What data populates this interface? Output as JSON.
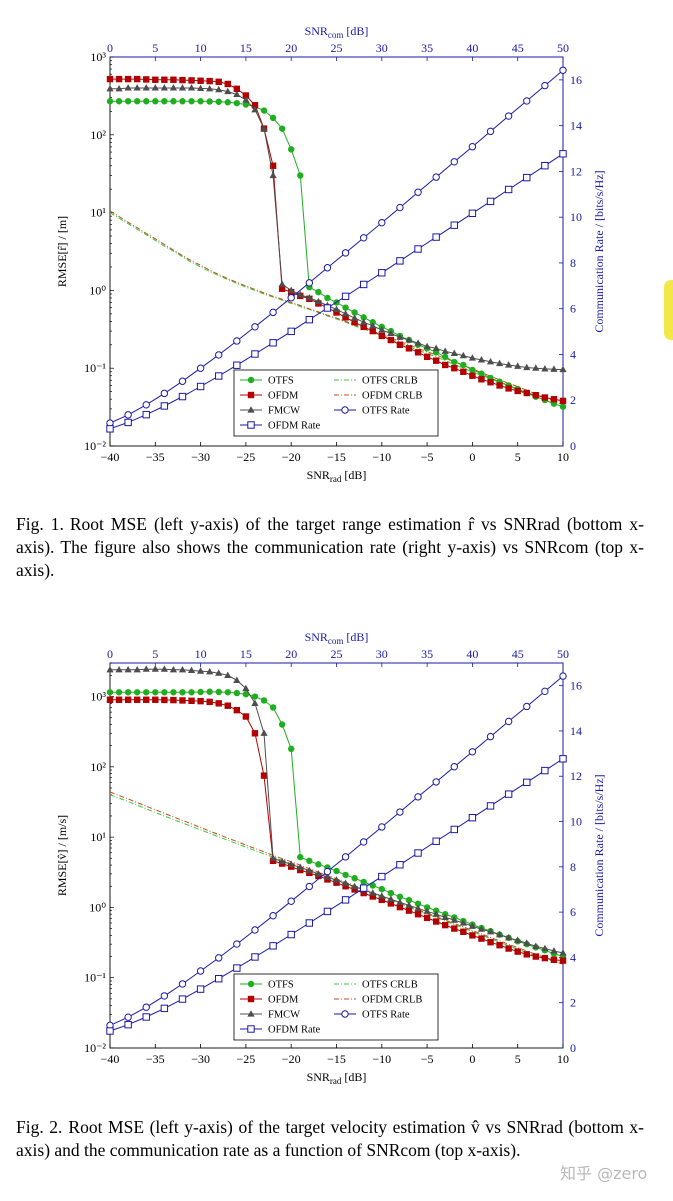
{
  "figure1": {
    "chart_data": {
      "type": "line",
      "title": "",
      "xlabel_bottom": "SNR_rad [dB]",
      "xlabel_top": "SNR_com [dB]",
      "ylabel_left": "RMSE[r̂] / [m]",
      "ylabel_right": "Communication Rate / [bits/s/Hz]",
      "x_bottom_range": [
        -40,
        10
      ],
      "x_top_range": [
        0,
        50
      ],
      "y_left_log_range": [
        0.01,
        1000
      ],
      "y_right_range": [
        0,
        17
      ],
      "x_bottom_ticks": [
        "−40",
        "−35",
        "−30",
        "−25",
        "−20",
        "−15",
        "−10",
        "−5",
        "0",
        "5",
        "10"
      ],
      "x_top_ticks": [
        "0",
        "5",
        "10",
        "15",
        "20",
        "25",
        "30",
        "35",
        "40",
        "45",
        "50"
      ],
      "y_left_ticks": [
        "10⁻²",
        "10⁻¹",
        "10⁰",
        "10¹",
        "10²",
        "10³"
      ],
      "y_right_ticks": [
        "0",
        "2",
        "4",
        "6",
        "8",
        "10",
        "12",
        "14",
        "16"
      ],
      "legend": [
        "OTFS",
        "OTFS CRLB",
        "OFDM",
        "OFDM CRLB",
        "FMCW",
        "OTFS Rate",
        "OFDM Rate"
      ],
      "rmse_x": [
        -40,
        -39,
        -38,
        -37,
        -36,
        -35,
        -34,
        -33,
        -32,
        -31,
        -30,
        -29,
        -28,
        -27,
        -26,
        -25,
        -24,
        -23,
        -22,
        -21,
        -20,
        -19,
        -18,
        -17,
        -16,
        -15,
        -14,
        -13,
        -12,
        -11,
        -10,
        -9,
        -8,
        -7,
        -6,
        -5,
        -4,
        -3,
        -2,
        -1,
        0,
        1,
        2,
        3,
        4,
        5,
        6,
        7,
        8,
        9,
        10
      ],
      "series": [
        {
          "name": "OTFS",
          "values": [
            270,
            270,
            270,
            270,
            270,
            270,
            270,
            270,
            270,
            270,
            270,
            268,
            266,
            262,
            255,
            245,
            230,
            205,
            165,
            120,
            65,
            30,
            1.1,
            0.95,
            0.8,
            0.7,
            0.6,
            0.52,
            0.45,
            0.39,
            0.34,
            0.3,
            0.26,
            0.23,
            0.2,
            0.18,
            0.16,
            0.14,
            0.12,
            0.11,
            0.095,
            0.085,
            0.075,
            0.067,
            0.06,
            0.054,
            0.048,
            0.043,
            0.039,
            0.035,
            0.032
          ]
        },
        {
          "name": "OFDM",
          "values": [
            520,
            520,
            520,
            520,
            515,
            510,
            510,
            510,
            505,
            500,
            495,
            490,
            480,
            450,
            390,
            320,
            240,
            120,
            40,
            1.05,
            0.95,
            0.85,
            0.78,
            0.68,
            0.6,
            0.52,
            0.45,
            0.39,
            0.34,
            0.3,
            0.26,
            0.23,
            0.2,
            0.18,
            0.16,
            0.14,
            0.125,
            0.11,
            0.1,
            0.09,
            0.08,
            0.072,
            0.066,
            0.06,
            0.055,
            0.051,
            0.048,
            0.045,
            0.042,
            0.04,
            0.038
          ]
        },
        {
          "name": "FMCW",
          "values": [
            390,
            390,
            400,
            400,
            400,
            400,
            400,
            400,
            400,
            400,
            395,
            390,
            380,
            360,
            330,
            280,
            210,
            120,
            30,
            1.2,
            1.0,
            0.88,
            0.8,
            0.72,
            0.64,
            0.57,
            0.5,
            0.44,
            0.39,
            0.35,
            0.31,
            0.28,
            0.25,
            0.23,
            0.21,
            0.19,
            0.18,
            0.165,
            0.155,
            0.145,
            0.135,
            0.128,
            0.121,
            0.115,
            0.11,
            0.106,
            0.102,
            0.1,
            0.098,
            0.097,
            0.096
          ]
        },
        {
          "name": "OTFS CRLB",
          "values": [
            10,
            8.5,
            7.2,
            6.1,
            5.2,
            4.4,
            3.7,
            3.2,
            2.7,
            2.3,
            2.0,
            1.75,
            1.55,
            1.38,
            1.23,
            1.1,
            1.0,
            0.9,
            0.82,
            0.75,
            0.68,
            0.62,
            0.57,
            0.52,
            0.47,
            0.43,
            0.39,
            0.35,
            0.32,
            0.29,
            0.26,
            0.235,
            0.21,
            0.19,
            0.17,
            0.155,
            0.14,
            0.125,
            0.112,
            0.1,
            0.09,
            0.081,
            0.073,
            0.066,
            0.059,
            0.053,
            0.048,
            0.043,
            0.039,
            0.035,
            0.032
          ]
        },
        {
          "name": "OFDM CRLB",
          "values": [
            10.5,
            8.9,
            7.5,
            6.4,
            5.4,
            4.6,
            3.9,
            3.3,
            2.8,
            2.4,
            2.1,
            1.82,
            1.6,
            1.42,
            1.27,
            1.14,
            1.03,
            0.93,
            0.84,
            0.77,
            0.7,
            0.64,
            0.58,
            0.53,
            0.48,
            0.44,
            0.4,
            0.36,
            0.33,
            0.3,
            0.27,
            0.245,
            0.22,
            0.2,
            0.18,
            0.163,
            0.148,
            0.134,
            0.121,
            0.109,
            0.098,
            0.088,
            0.079,
            0.071,
            0.064,
            0.058,
            0.052,
            0.047,
            0.042,
            0.038,
            0.034
          ]
        }
      ],
      "rate_x": [
        0,
        2,
        4,
        6,
        8,
        10,
        12,
        14,
        16,
        18,
        20,
        22,
        24,
        26,
        28,
        30,
        32,
        34,
        36,
        38,
        40,
        42,
        44,
        46,
        48,
        50
      ],
      "rate_series": [
        {
          "name": "OTFS Rate",
          "values": [
            1.0,
            1.36,
            1.8,
            2.3,
            2.83,
            3.4,
            3.98,
            4.59,
            5.21,
            5.84,
            6.48,
            7.13,
            7.79,
            8.44,
            9.1,
            9.76,
            10.42,
            11.09,
            11.75,
            12.42,
            13.08,
            13.75,
            14.42,
            15.08,
            15.75,
            16.42
          ]
        },
        {
          "name": "OFDM Rate",
          "values": [
            0.75,
            1.03,
            1.37,
            1.75,
            2.16,
            2.6,
            3.06,
            3.53,
            4.02,
            4.51,
            5.01,
            5.52,
            6.03,
            6.54,
            7.06,
            7.57,
            8.09,
            8.61,
            9.13,
            9.65,
            10.17,
            10.69,
            11.21,
            11.73,
            12.25,
            12.77
          ]
        }
      ]
    },
    "caption_label": "Fig. 1.",
    "caption_text": "Root MSE (left y-axis) of the target range estimation r̂ vs SNRrad (bottom x-axis). The figure also shows the communication rate (right y-axis) vs SNRcom (top x-axis)."
  },
  "figure2": {
    "chart_data": {
      "type": "line",
      "title": "",
      "xlabel_bottom": "SNR_rad [dB]",
      "xlabel_top": "SNR_com [dB]",
      "ylabel_left": "RMSE[v̂] / [m/s]",
      "ylabel_right": "Communication Rate / [bits/s/Hz]",
      "x_bottom_range": [
        -40,
        10
      ],
      "x_top_range": [
        0,
        50
      ],
      "y_left_log_range": [
        0.01,
        3000
      ],
      "y_right_range": [
        0,
        17
      ],
      "x_bottom_ticks": [
        "−40",
        "−35",
        "−30",
        "−25",
        "−20",
        "−15",
        "−10",
        "−5",
        "0",
        "5",
        "10"
      ],
      "x_top_ticks": [
        "0",
        "5",
        "10",
        "15",
        "20",
        "25",
        "30",
        "35",
        "40",
        "45",
        "50"
      ],
      "y_left_ticks": [
        "10⁻²",
        "10⁻¹",
        "10⁰",
        "10¹",
        "10²",
        "10³"
      ],
      "y_right_ticks": [
        "0",
        "2",
        "4",
        "6",
        "8",
        "10",
        "12",
        "14",
        "16"
      ],
      "legend": [
        "OTFS",
        "OTFS CRLB",
        "OFDM",
        "OFDM CRLB",
        "FMCW",
        "OTFS Rate",
        "OFDM Rate"
      ],
      "rmse_x": [
        -40,
        -39,
        -38,
        -37,
        -36,
        -35,
        -34,
        -33,
        -32,
        -31,
        -30,
        -29,
        -28,
        -27,
        -26,
        -25,
        -24,
        -23,
        -22,
        -21,
        -20,
        -19,
        -18,
        -17,
        -16,
        -15,
        -14,
        -13,
        -12,
        -11,
        -10,
        -9,
        -8,
        -7,
        -6,
        -5,
        -4,
        -3,
        -2,
        -1,
        0,
        1,
        2,
        3,
        4,
        5,
        6,
        7,
        8,
        9,
        10
      ],
      "series": [
        {
          "name": "OTFS",
          "values": [
            1150,
            1150,
            1150,
            1150,
            1150,
            1150,
            1150,
            1150,
            1150,
            1150,
            1160,
            1170,
            1160,
            1150,
            1120,
            1080,
            1000,
            880,
            700,
            400,
            180,
            5.2,
            4.6,
            4.1,
            3.7,
            3.3,
            2.9,
            2.6,
            2.3,
            2.05,
            1.82,
            1.6,
            1.42,
            1.27,
            1.13,
            1.0,
            0.9,
            0.8,
            0.72,
            0.64,
            0.57,
            0.51,
            0.46,
            0.41,
            0.37,
            0.33,
            0.3,
            0.27,
            0.245,
            0.22,
            0.2
          ]
        },
        {
          "name": "OFDM",
          "values": [
            900,
            900,
            900,
            900,
            900,
            900,
            895,
            890,
            880,
            870,
            860,
            840,
            800,
            740,
            640,
            520,
            300,
            75,
            4.6,
            4.2,
            3.8,
            3.4,
            3.1,
            2.8,
            2.5,
            2.25,
            2.0,
            1.8,
            1.6,
            1.43,
            1.28,
            1.14,
            1.01,
            0.9,
            0.8,
            0.71,
            0.63,
            0.56,
            0.5,
            0.45,
            0.4,
            0.36,
            0.32,
            0.29,
            0.26,
            0.235,
            0.215,
            0.2,
            0.19,
            0.18,
            0.175
          ]
        },
        {
          "name": "FMCW",
          "values": [
            2400,
            2400,
            2400,
            2400,
            2450,
            2450,
            2450,
            2400,
            2400,
            2350,
            2300,
            2250,
            2150,
            2000,
            1700,
            1300,
            800,
            300,
            5.0,
            4.5,
            4.1,
            3.7,
            3.35,
            3.0,
            2.7,
            2.45,
            2.2,
            1.98,
            1.78,
            1.6,
            1.45,
            1.31,
            1.18,
            1.07,
            0.97,
            0.88,
            0.8,
            0.72,
            0.66,
            0.6,
            0.54,
            0.49,
            0.45,
            0.41,
            0.37,
            0.34,
            0.31,
            0.28,
            0.26,
            0.24,
            0.225
          ]
        },
        {
          "name": "OTFS CRLB",
          "values": [
            40,
            36,
            32,
            28.5,
            25.3,
            22.5,
            20,
            17.8,
            15.9,
            14.2,
            12.7,
            11.3,
            10.1,
            9.0,
            8.1,
            7.2,
            6.45,
            5.8,
            5.2,
            4.65,
            4.2,
            3.75,
            3.35,
            3.0,
            2.7,
            2.42,
            2.17,
            1.95,
            1.75,
            1.57,
            1.41,
            1.26,
            1.13,
            1.01,
            0.9,
            0.81,
            0.72,
            0.64,
            0.57,
            0.51,
            0.455,
            0.405,
            0.36,
            0.32,
            0.285,
            0.255,
            0.228,
            0.205,
            0.185,
            0.17,
            0.158
          ]
        },
        {
          "name": "OFDM CRLB",
          "values": [
            44,
            39,
            35,
            31,
            27.5,
            24.5,
            21.8,
            19.4,
            17.3,
            15.4,
            13.7,
            12.2,
            10.9,
            9.7,
            8.7,
            7.7,
            6.9,
            6.2,
            5.5,
            4.95,
            4.45,
            4.0,
            3.55,
            3.18,
            2.85,
            2.55,
            2.28,
            2.04,
            1.82,
            1.63,
            1.46,
            1.3,
            1.16,
            1.04,
            0.93,
            0.83,
            0.74,
            0.66,
            0.59,
            0.53,
            0.47,
            0.42,
            0.375,
            0.335,
            0.3,
            0.268,
            0.24,
            0.215,
            0.193,
            0.173,
            0.155
          ]
        }
      ],
      "rate_x": [
        0,
        2,
        4,
        6,
        8,
        10,
        12,
        14,
        16,
        18,
        20,
        22,
        24,
        26,
        28,
        30,
        32,
        34,
        36,
        38,
        40,
        42,
        44,
        46,
        48,
        50
      ],
      "rate_series": [
        {
          "name": "OTFS Rate",
          "values": [
            1.0,
            1.36,
            1.8,
            2.3,
            2.83,
            3.4,
            3.98,
            4.59,
            5.21,
            5.84,
            6.48,
            7.13,
            7.79,
            8.44,
            9.1,
            9.76,
            10.42,
            11.09,
            11.75,
            12.42,
            13.08,
            13.75,
            14.42,
            15.08,
            15.75,
            16.42
          ]
        },
        {
          "name": "OFDM Rate",
          "values": [
            0.75,
            1.03,
            1.37,
            1.75,
            2.16,
            2.6,
            3.06,
            3.53,
            4.02,
            4.51,
            5.01,
            5.52,
            6.03,
            6.54,
            7.06,
            7.57,
            8.09,
            8.61,
            9.13,
            9.65,
            10.17,
            10.69,
            11.21,
            11.73,
            12.25,
            12.77
          ]
        }
      ]
    },
    "caption_label": "Fig. 2.",
    "caption_text": "Root MSE (left y-axis) of the target velocity estimation v̂ vs SNRrad (bottom x-axis) and the communication rate as a function of SNRcom (top x-axis)."
  },
  "colors": {
    "otfs": "#1fae1f",
    "ofdm": "#b30000",
    "fmcw": "#4d4d4d",
    "rate": "#1a1aa8",
    "otfs_crlb": "#3cc43c",
    "ofdm_crlb": "#c0501a"
  },
  "watermark": "知乎 @zero"
}
